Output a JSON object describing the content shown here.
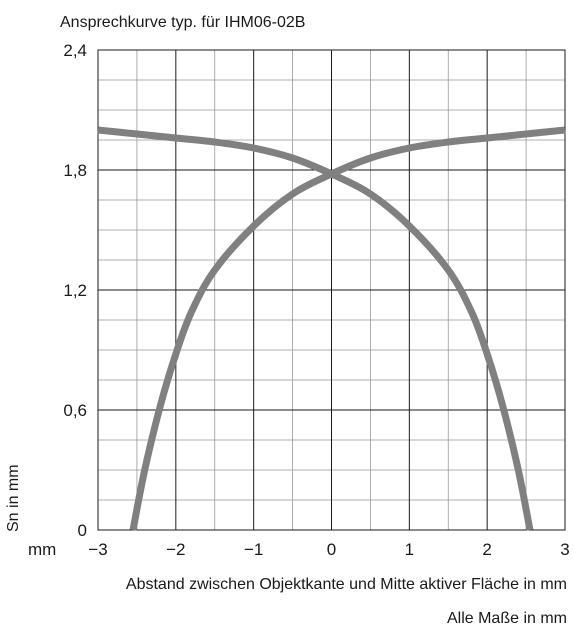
{
  "chart_data": {
    "type": "line",
    "title": "Ansprechkurve typ. für IHM06-02B",
    "xlabel": "Abstand zwischen Objektkante und Mitte aktiver Fläche in mm",
    "ylabel": "Sn in mm",
    "x_unit_label": "mm",
    "footnote": "Alle Maße in mm",
    "xlim": [
      -3,
      3
    ],
    "ylim": [
      0,
      2.4
    ],
    "x_ticks": [
      -3,
      -2,
      -1,
      0,
      1,
      2,
      3
    ],
    "x_tick_labels": [
      "−3",
      "−2",
      "−1",
      "0",
      "1",
      "2",
      "3"
    ],
    "y_ticks": [
      0,
      0.6,
      1.2,
      1.8,
      2.4
    ],
    "y_tick_labels": [
      "0",
      "0,6",
      "1,2",
      "1,8",
      "2,4"
    ],
    "grid": true,
    "line_color": "#808080",
    "series": [
      {
        "points": [
          [
            -2.55,
            0
          ],
          [
            -2.4,
            0.3
          ],
          [
            -2.2,
            0.62
          ],
          [
            -2.0,
            0.88
          ],
          [
            -1.8,
            1.09
          ],
          [
            -1.5,
            1.3
          ],
          [
            -1.0,
            1.52
          ],
          [
            -0.5,
            1.68
          ],
          [
            0,
            1.78
          ],
          [
            0.5,
            1.86
          ],
          [
            1.0,
            1.91
          ],
          [
            1.5,
            1.94
          ],
          [
            2.0,
            1.96
          ],
          [
            2.5,
            1.98
          ],
          [
            3.0,
            2.0
          ]
        ]
      },
      {
        "points": [
          [
            -3.0,
            2.0
          ],
          [
            -2.5,
            1.98
          ],
          [
            -2.0,
            1.96
          ],
          [
            -1.5,
            1.94
          ],
          [
            -1.0,
            1.91
          ],
          [
            -0.5,
            1.86
          ],
          [
            0,
            1.78
          ],
          [
            0.5,
            1.68
          ],
          [
            1.0,
            1.52
          ],
          [
            1.5,
            1.3
          ],
          [
            1.8,
            1.09
          ],
          [
            2.0,
            0.88
          ],
          [
            2.2,
            0.62
          ],
          [
            2.4,
            0.3
          ],
          [
            2.55,
            0
          ]
        ]
      }
    ]
  }
}
